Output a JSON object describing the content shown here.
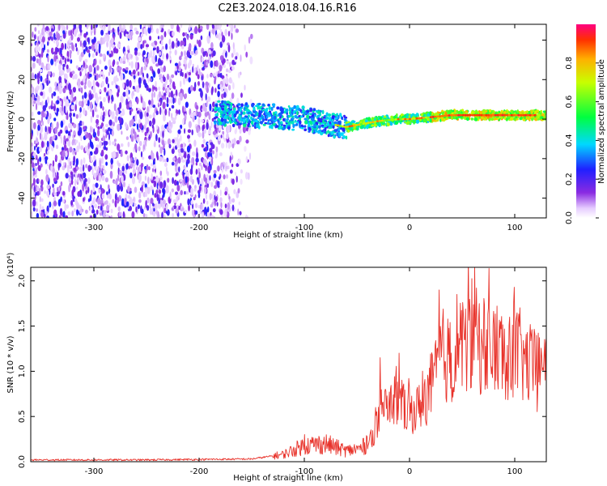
{
  "title": "C2E3.2024.018.04.16.R16",
  "chart_data": [
    {
      "type": "heatmap",
      "name": "spectrogram",
      "xlabel": "Height of straight line (km)",
      "ylabel": "Frequency (Hz)",
      "xlim": [
        -360,
        130
      ],
      "ylim": [
        -50,
        48
      ],
      "xticks": [
        -300,
        -200,
        -100,
        0,
        100
      ],
      "xtick_labels": [
        "-300",
        "-200",
        "-100",
        "0",
        "100"
      ],
      "yticks": [
        -40,
        -20,
        0,
        20,
        40
      ],
      "ytick_labels": [
        "-40",
        "-20",
        "0",
        "20",
        "40"
      ],
      "colorbar": {
        "label": "Normalized spectral amplitude",
        "range": [
          0,
          1
        ],
        "ticks": [
          0.0,
          0.2,
          0.4,
          0.6,
          0.8
        ],
        "tick_labels": [
          "0.0",
          "0.2",
          "0.4",
          "0.6",
          "0.8"
        ]
      },
      "signal_track": {
        "x": [
          -180,
          -150,
          -120,
          -100,
          -80,
          -70,
          -60,
          -50,
          -40,
          -30,
          -20,
          -10,
          0,
          10,
          20,
          30,
          40,
          60,
          80,
          100,
          120,
          130
        ],
        "freq": [
          3,
          2,
          1,
          0,
          -2,
          -3,
          -4,
          -3,
          -2,
          -1,
          -0.5,
          0,
          0,
          0.5,
          1,
          1.5,
          2,
          2,
          2,
          2,
          2,
          2
        ]
      }
    },
    {
      "type": "line",
      "name": "snr",
      "xlabel": "Height of straight line (km)",
      "ylabel": "SNR (10 * v/v)",
      "multiplier": "(x10⁴)",
      "xlim": [
        -360,
        130
      ],
      "ylim": [
        0,
        2.15
      ],
      "xticks": [
        -300,
        -200,
        -100,
        0,
        100
      ],
      "xtick_labels": [
        "-300",
        "-200",
        "-100",
        "0",
        "100"
      ],
      "yticks": [
        0.0,
        0.5,
        1.0,
        1.5,
        2.0
      ],
      "ytick_labels": [
        "0.0",
        "0.5",
        "1.0",
        "1.5",
        "2.0"
      ],
      "color": "#e8322a",
      "envelope": {
        "x": [
          -360,
          -250,
          -150,
          -120,
          -100,
          -80,
          -60,
          -45,
          -35,
          -25,
          -15,
          -5,
          5,
          15,
          25,
          30,
          40,
          50,
          60,
          70,
          80,
          90,
          100,
          110,
          120,
          130
        ],
        "y": [
          0.02,
          0.02,
          0.03,
          0.08,
          0.18,
          0.2,
          0.12,
          0.15,
          0.3,
          0.55,
          0.7,
          0.6,
          0.55,
          0.7,
          0.95,
          1.2,
          1.1,
          1.3,
          1.35,
          1.3,
          1.25,
          1.2,
          1.25,
          1.1,
          1.0,
          1.0
        ]
      },
      "peaks": [
        {
          "x": -100,
          "y": 0.3
        },
        {
          "x": -32,
          "y": 0.6
        },
        {
          "x": -28,
          "y": 1.15
        },
        {
          "x": -10,
          "y": 1.2
        },
        {
          "x": 28,
          "y": 1.9
        },
        {
          "x": 45,
          "y": 1.85
        },
        {
          "x": 62,
          "y": 2.15
        },
        {
          "x": 75,
          "y": 1.7
        },
        {
          "x": 95,
          "y": 1.6
        }
      ]
    }
  ]
}
